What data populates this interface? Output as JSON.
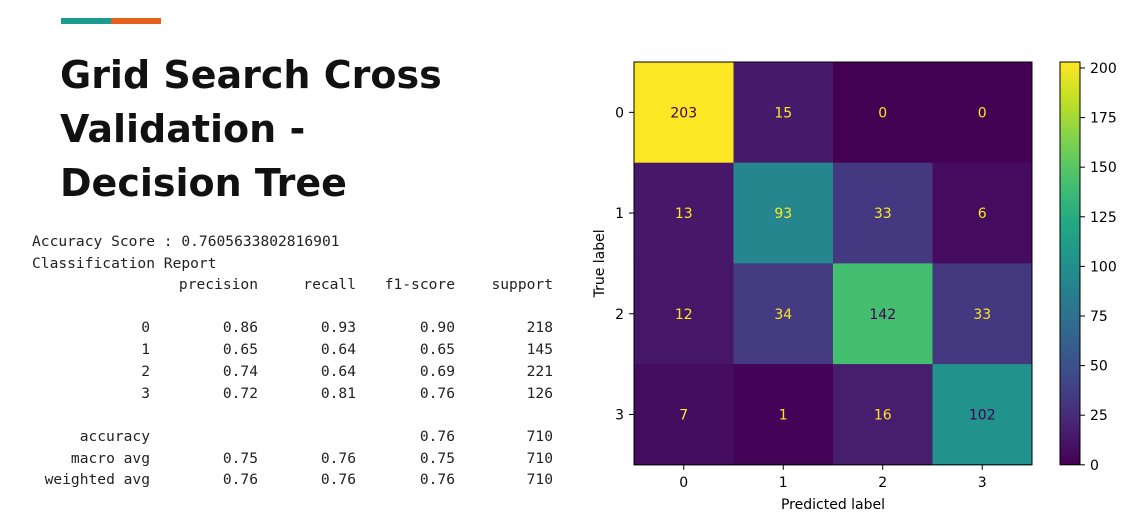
{
  "slide": {
    "title_lines": [
      "Grid Search Cross",
      "Validation -",
      "Decision Tree"
    ],
    "accent_colors": [
      "#1a9c8f",
      "#e3611b"
    ]
  },
  "report": {
    "accuracy_line": "Accuracy Score : 0.7605633802816901",
    "report_title": "Classification Report",
    "headers": [
      "precision",
      "recall",
      "f1-score",
      "support"
    ],
    "rows": [
      {
        "label": "0",
        "precision": "0.86",
        "recall": "0.93",
        "f1": "0.90",
        "support": "218"
      },
      {
        "label": "1",
        "precision": "0.65",
        "recall": "0.64",
        "f1": "0.65",
        "support": "145"
      },
      {
        "label": "2",
        "precision": "0.74",
        "recall": "0.64",
        "f1": "0.69",
        "support": "221"
      },
      {
        "label": "3",
        "precision": "0.72",
        "recall": "0.81",
        "f1": "0.76",
        "support": "126"
      }
    ],
    "summary": [
      {
        "label": "accuracy",
        "precision": "",
        "recall": "",
        "f1": "0.76",
        "support": "710"
      },
      {
        "label": "macro avg",
        "precision": "0.75",
        "recall": "0.76",
        "f1": "0.75",
        "support": "710"
      },
      {
        "label": "weighted avg",
        "precision": "0.76",
        "recall": "0.76",
        "f1": "0.76",
        "support": "710"
      }
    ]
  },
  "chart_data": {
    "type": "heatmap",
    "x_categories": [
      "0",
      "1",
      "2",
      "3"
    ],
    "y_categories": [
      "0",
      "1",
      "2",
      "3"
    ],
    "xlabel": "Predicted label",
    "ylabel": "True label",
    "matrix": [
      [
        203,
        15,
        0,
        0
      ],
      [
        13,
        93,
        33,
        6
      ],
      [
        12,
        34,
        142,
        33
      ],
      [
        7,
        1,
        16,
        102
      ]
    ],
    "colormap": "viridis",
    "color_range": [
      0,
      203
    ],
    "colorbar_ticks": [
      0,
      25,
      50,
      75,
      100,
      125,
      150,
      175,
      200
    ],
    "grid": false
  }
}
